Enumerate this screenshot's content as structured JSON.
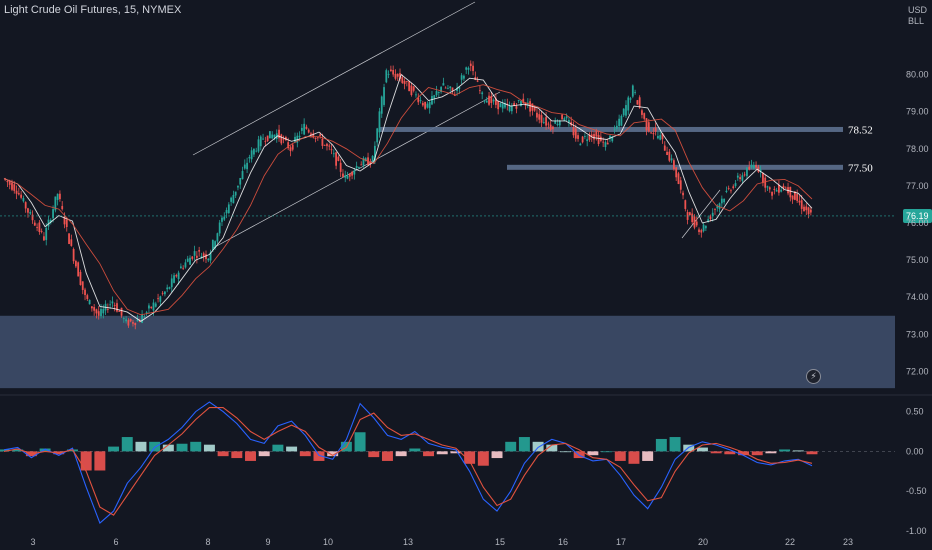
{
  "header": {
    "title": "Light Crude Oil Futures, 15, NYMEX"
  },
  "axis_unit": [
    "USD",
    "BLL"
  ],
  "icons": {
    "alert": "lightning-icon"
  },
  "colors": {
    "background": "#131722",
    "zone": "#3b4a66",
    "level_line": "#5d708f",
    "up": "#26a69a",
    "down": "#ef5350",
    "macd": "#2962ff",
    "signal": "#e0523f"
  },
  "chart_data": [
    {
      "type": "line",
      "name": "price",
      "ylim": [
        71.5,
        81.2
      ],
      "price_ticks": [
        "80.00",
        "79.00",
        "78.00",
        "77.00",
        "76.00",
        "75.00",
        "74.00",
        "73.00",
        "72.00"
      ],
      "x_ticks": [
        "3",
        "6",
        "8",
        "9",
        "10",
        "13",
        "15",
        "16",
        "17",
        "20",
        "22",
        "23"
      ],
      "last_price": "76.19",
      "last_value": 76.19,
      "levels": [
        {
          "value": 78.52,
          "label": "78.52"
        },
        {
          "value": 77.5,
          "label": "77.50"
        }
      ],
      "demand_zone": [
        71.55,
        73.5
      ],
      "series": [
        {
          "values": [
            77.2,
            76.9,
            76.2,
            75.6,
            76.8,
            75.3,
            74.0,
            73.5,
            73.9,
            73.3,
            73.4,
            73.8,
            74.2,
            74.8,
            75.2,
            75.1,
            76.1,
            76.9,
            77.8,
            78.3,
            78.4,
            78.0,
            78.6,
            78.3,
            77.9,
            77.2,
            77.6,
            77.7,
            80.1,
            79.9,
            79.5,
            79.1,
            79.7,
            79.5,
            80.3,
            79.4,
            79.2,
            79.1,
            79.3,
            78.9,
            78.6,
            78.9,
            78.2,
            78.4,
            78.1,
            78.7,
            79.6,
            78.6,
            78.3,
            77.5,
            76.2,
            75.8,
            76.4,
            76.9,
            77.3,
            77.6,
            76.8,
            77.0,
            76.6,
            76.19
          ]
        }
      ]
    },
    {
      "type": "bar",
      "name": "macd",
      "ylim": [
        -1.05,
        0.62
      ],
      "y_ticks": [
        "0.50",
        "0.00",
        "-0.50",
        "-1.00"
      ],
      "macd": [
        0.02,
        0.05,
        -0.08,
        0.03,
        -0.05,
        0.04,
        -0.45,
        -0.9,
        -0.75,
        -0.4,
        -0.2,
        0.05,
        0.15,
        0.3,
        0.5,
        0.62,
        0.5,
        0.35,
        0.15,
        0.1,
        0.32,
        0.38,
        0.2,
        -0.05,
        -0.1,
        0.15,
        0.6,
        0.42,
        0.2,
        0.15,
        0.25,
        0.1,
        0.05,
        0.02,
        -0.25,
        -0.6,
        -0.75,
        -0.5,
        -0.15,
        0.05,
        0.15,
        0.1,
        -0.05,
        -0.12,
        -0.1,
        -0.3,
        -0.55,
        -0.72,
        -0.45,
        -0.1,
        0.05,
        0.12,
        0.08,
        0.02,
        -0.05,
        -0.14,
        -0.17,
        -0.12,
        -0.1,
        -0.18
      ],
      "signal": [
        0.0,
        0.03,
        -0.03,
        0.0,
        -0.02,
        0.02,
        -0.25,
        -0.7,
        -0.8,
        -0.55,
        -0.3,
        -0.05,
        0.08,
        0.22,
        0.4,
        0.55,
        0.55,
        0.42,
        0.25,
        0.15,
        0.25,
        0.33,
        0.25,
        0.05,
        -0.05,
        0.05,
        0.4,
        0.48,
        0.3,
        0.2,
        0.22,
        0.15,
        0.08,
        0.04,
        -0.12,
        -0.45,
        -0.68,
        -0.6,
        -0.3,
        -0.05,
        0.08,
        0.1,
        0.02,
        -0.08,
        -0.1,
        -0.2,
        -0.42,
        -0.62,
        -0.58,
        -0.25,
        -0.02,
        0.08,
        0.1,
        0.05,
        -0.01,
        -0.1,
        -0.15,
        -0.14,
        -0.11,
        -0.15
      ]
    }
  ]
}
